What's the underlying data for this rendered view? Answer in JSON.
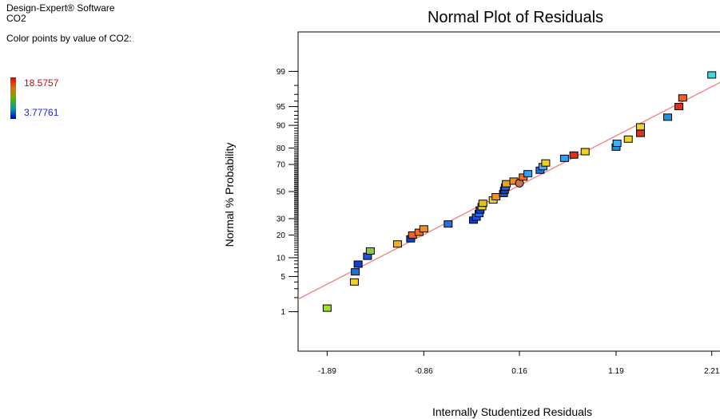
{
  "header": {
    "app_name": "Design-Expert® Software",
    "response": "CO2",
    "color_by_label": "Color points by value of CO2:",
    "color_max": "18.5757",
    "color_min": "3.77761",
    "color_max_hex": "#e00000",
    "color_min_hex": "#2020e0"
  },
  "chart_data": {
    "type": "scatter",
    "title": "Normal Plot of Residuals",
    "xlabel": "Internally Studentized Residuals",
    "ylabel": "Normal % Probability",
    "x_ticks": [
      "-1.89",
      "-0.86",
      "0.16",
      "1.19",
      "2.21"
    ],
    "y_ticks": [
      "1",
      "5",
      "10",
      "20",
      "30",
      "50",
      "70",
      "80",
      "90",
      "95",
      "99"
    ],
    "xlim": [
      -2.2,
      2.4
    ],
    "ylim_probability": [
      0.1,
      99.9
    ],
    "reference_line_color": "#f08080",
    "points": [
      {
        "x": -1.89,
        "p": 1.2,
        "color": "#a0e020"
      },
      {
        "x": -1.6,
        "p": 4.0,
        "color": "#f0d020"
      },
      {
        "x": -1.59,
        "p": 6.0,
        "color": "#2070e0"
      },
      {
        "x": -1.56,
        "p": 8.0,
        "color": "#1040d0"
      },
      {
        "x": -1.46,
        "p": 10.5,
        "color": "#2050e0"
      },
      {
        "x": -1.43,
        "p": 12.5,
        "color": "#80d040"
      },
      {
        "x": -1.14,
        "p": 15.5,
        "color": "#f0b020"
      },
      {
        "x": -1.0,
        "p": 18.0,
        "color": "#1040d0"
      },
      {
        "x": -0.98,
        "p": 20.0,
        "color": "#f06020"
      },
      {
        "x": -0.91,
        "p": 21.5,
        "color": "#f07020"
      },
      {
        "x": -0.86,
        "p": 23.5,
        "color": "#f09020"
      },
      {
        "x": -0.6,
        "p": 26.5,
        "color": "#2070e0"
      },
      {
        "x": -0.33,
        "p": 29.0,
        "color": "#1040d0"
      },
      {
        "x": -0.3,
        "p": 31.0,
        "color": "#2050e0"
      },
      {
        "x": -0.27,
        "p": 33.5,
        "color": "#2070e0"
      },
      {
        "x": -0.26,
        "p": 36.0,
        "color": "#1040d0"
      },
      {
        "x": -0.24,
        "p": 38.5,
        "color": "#f0d020"
      },
      {
        "x": -0.23,
        "p": 41.0,
        "color": "#e0c020"
      },
      {
        "x": -0.12,
        "p": 43.5,
        "color": "#f0d020"
      },
      {
        "x": -0.09,
        "p": 46.0,
        "color": "#f09020"
      },
      {
        "x": -0.01,
        "p": 48.5,
        "color": "#2050e0"
      },
      {
        "x": 0.0,
        "p": 51.0,
        "color": "#1040d0"
      },
      {
        "x": 0.01,
        "p": 53.5,
        "color": "#2060e0"
      },
      {
        "x": 0.02,
        "p": 56.0,
        "color": "#f0a020"
      },
      {
        "x": 0.1,
        "p": 58.0,
        "color": "#f09020"
      },
      {
        "x": 0.16,
        "p": 56.5,
        "color": "#d07050",
        "shape": "circle"
      },
      {
        "x": 0.2,
        "p": 61.0,
        "color": "#f07020"
      },
      {
        "x": 0.25,
        "p": 63.5,
        "color": "#30a0f0"
      },
      {
        "x": 0.38,
        "p": 66.0,
        "color": "#2070e0"
      },
      {
        "x": 0.41,
        "p": 68.5,
        "color": "#40b0f0"
      },
      {
        "x": 0.44,
        "p": 71.0,
        "color": "#f0d020"
      },
      {
        "x": 0.64,
        "p": 74.0,
        "color": "#30a0f0"
      },
      {
        "x": 0.74,
        "p": 76.0,
        "color": "#e03020"
      },
      {
        "x": 0.86,
        "p": 78.0,
        "color": "#f0d020"
      },
      {
        "x": 1.19,
        "p": 80.5,
        "color": "#2090e0"
      },
      {
        "x": 1.2,
        "p": 82.5,
        "color": "#40b0f0"
      },
      {
        "x": 1.32,
        "p": 84.5,
        "color": "#f0d020"
      },
      {
        "x": 1.45,
        "p": 87.0,
        "color": "#e03020"
      },
      {
        "x": 1.45,
        "p": 89.5,
        "color": "#f0d020"
      },
      {
        "x": 1.74,
        "p": 92.5,
        "color": "#2090e0"
      },
      {
        "x": 1.86,
        "p": 95.0,
        "color": "#e03020"
      },
      {
        "x": 1.9,
        "p": 96.5,
        "color": "#f06020"
      },
      {
        "x": 2.21,
        "p": 98.8,
        "color": "#40d8e0"
      }
    ]
  }
}
